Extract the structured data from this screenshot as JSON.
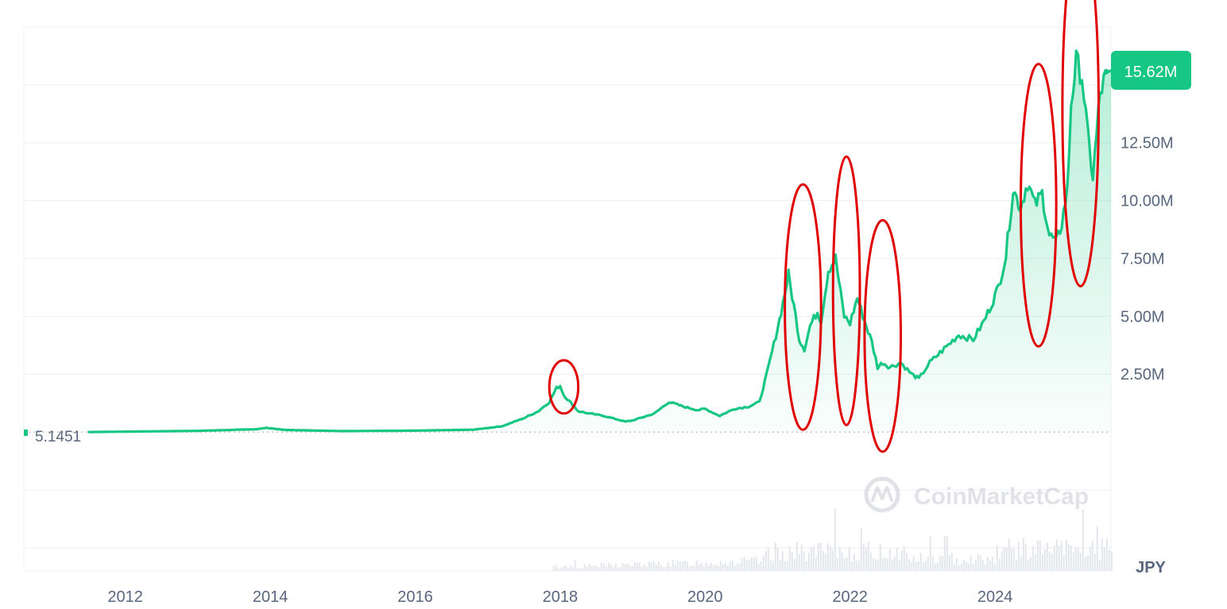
{
  "chart_data": {
    "type": "area",
    "currency": "JPY",
    "watermark": "CoinMarketCap",
    "price_badge": "15.62M",
    "start_label": "5.1451",
    "y_ticks": [
      "2.50M",
      "5.00M",
      "7.50M",
      "10.00M",
      "12.50M"
    ],
    "y_tick_values": [
      2500000,
      5000000,
      7500000,
      10000000,
      12500000
    ],
    "x_ticks": [
      "2012",
      "2014",
      "2016",
      "2018",
      "2020",
      "2022",
      "2024"
    ],
    "x_tick_values": [
      2012,
      2014,
      2016,
      2018,
      2020,
      2022,
      2024
    ],
    "xlim": [
      2010.6,
      2025.6
    ],
    "ylim": [
      -6000000,
      17500000
    ],
    "colors": {
      "line": "#16c784",
      "badge": "#16c784",
      "highlight": "#e00000",
      "grid": "#eff2f5",
      "axis_text": "#58667e"
    },
    "series": [
      {
        "x": [
          2011.5,
          2013.0,
          2013.8,
          2013.95,
          2014.2,
          2015.0,
          2016.0,
          2016.8,
          2017.2,
          2017.5,
          2017.7,
          2017.85,
          2017.95,
          2018.0,
          2018.05,
          2018.15,
          2018.25,
          2018.4,
          2018.6,
          2018.9,
          2019.0,
          2019.3,
          2019.5,
          2019.7,
          2019.9,
          2020.0,
          2020.2,
          2020.4,
          2020.6,
          2020.75,
          2020.85,
          2020.95,
          2021.05,
          2021.15,
          2021.25,
          2021.3,
          2021.37,
          2021.45,
          2021.55,
          2021.6,
          2021.7,
          2021.8,
          2021.87,
          2021.92,
          2022.0,
          2022.1,
          2022.2,
          2022.3,
          2022.38,
          2022.45,
          2022.55,
          2022.7,
          2022.85,
          2022.95,
          2023.1,
          2023.3,
          2023.5,
          2023.7,
          2023.85,
          2023.95,
          2024.05,
          2024.15,
          2024.25,
          2024.35,
          2024.45,
          2024.55,
          2024.65,
          2024.75,
          2024.85,
          2024.92,
          2025.0,
          2025.05,
          2025.12,
          2025.2,
          2025.28,
          2025.35,
          2025.45,
          2025.55
        ],
        "y": [
          5.1451,
          50000,
          120000,
          180000,
          90000,
          40000,
          60000,
          100000,
          250000,
          600000,
          900000,
          1300000,
          1900000,
          2000000,
          1600000,
          1250000,
          900000,
          800000,
          700000,
          450000,
          500000,
          800000,
          1300000,
          1100000,
          950000,
          1000000,
          700000,
          1000000,
          1100000,
          1300000,
          2500000,
          3800000,
          5200000,
          6800000,
          5000000,
          4000000,
          3600000,
          4600000,
          5200000,
          4800000,
          7000000,
          7500000,
          6000000,
          5000000,
          4700000,
          5800000,
          4800000,
          3900000,
          2800000,
          3000000,
          2800000,
          3000000,
          2500000,
          2300000,
          3000000,
          3600000,
          4200000,
          4000000,
          4800000,
          5500000,
          6300000,
          7600000,
          10500000,
          9700000,
          10800000,
          9800000,
          10300000,
          8500000,
          8200000,
          9000000,
          10500000,
          14200000,
          16000000,
          15400000,
          12800000,
          11000000,
          14600000,
          15620000
        ]
      }
    ],
    "annotations": [
      {
        "x": 2018.05,
        "y": 1950000,
        "rx": 0.2,
        "ry": 1150000
      },
      {
        "x": 2021.35,
        "y": 5400000,
        "rx": 0.25,
        "ry": 5300000
      },
      {
        "x": 2021.95,
        "y": 6100000,
        "rx": 0.185,
        "ry": 5800000
      },
      {
        "x": 2022.45,
        "y": 4150000,
        "rx": 0.25,
        "ry": 5000000
      },
      {
        "x": 2024.6,
        "y": 9800000,
        "rx": 0.245,
        "ry": 6100000
      },
      {
        "x": 2025.18,
        "y": 14000000,
        "rx": 0.25,
        "ry": 7700000
      }
    ]
  }
}
